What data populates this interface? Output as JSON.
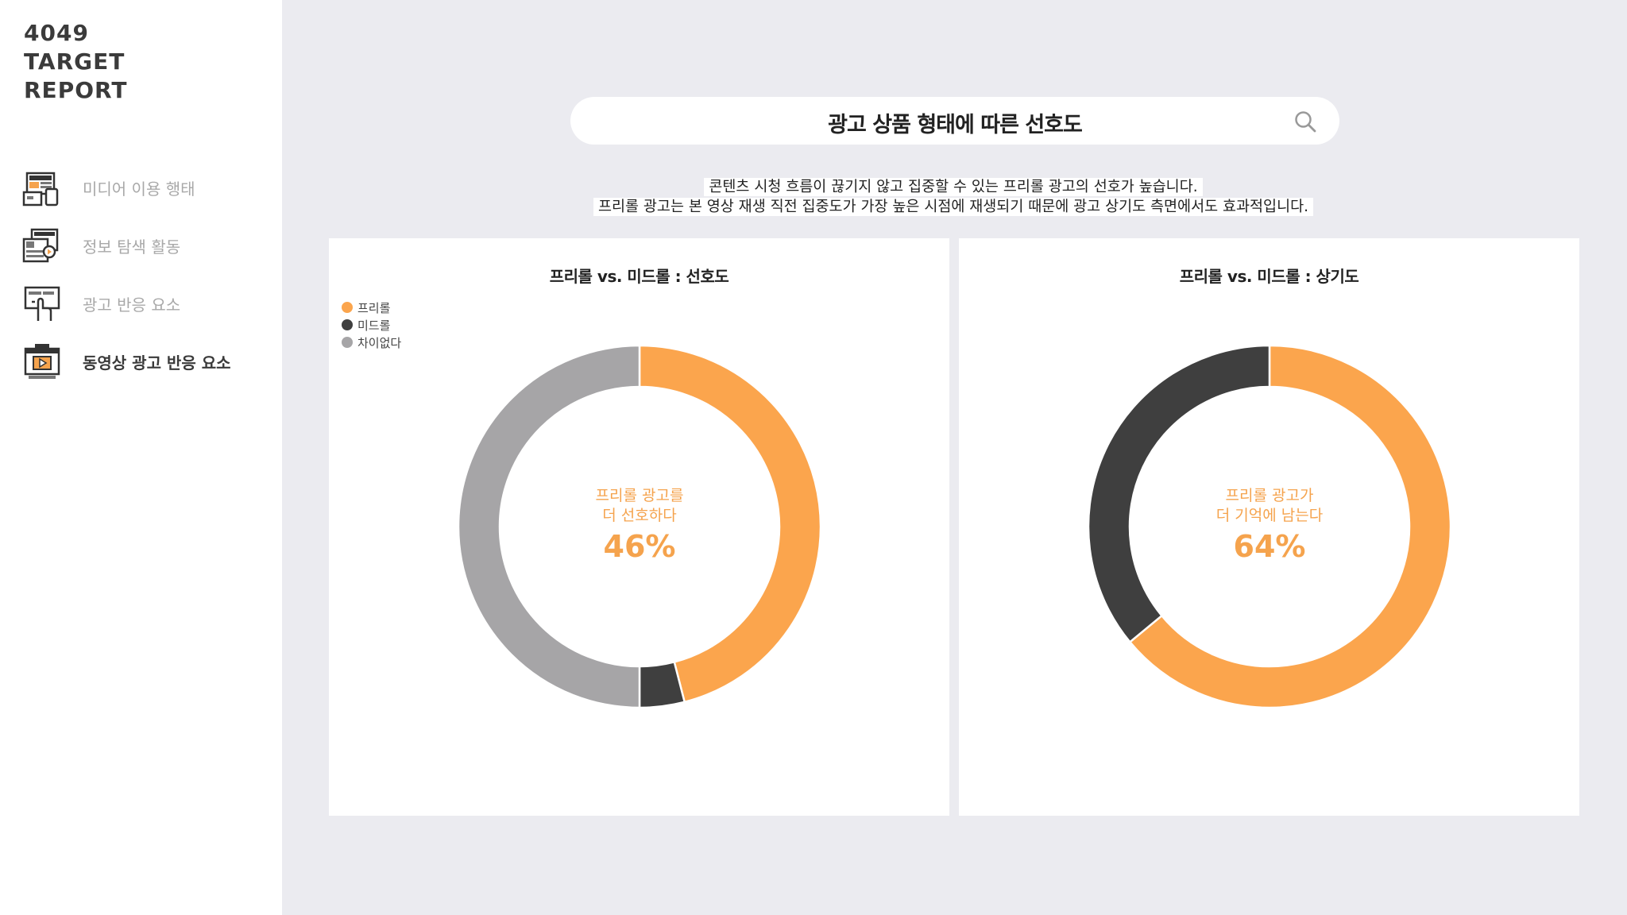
{
  "sidebar": {
    "brand": [
      "4049",
      "TARGET",
      "REPORT"
    ],
    "items": [
      {
        "label": "미디어 이용 행태",
        "icon": "devices-icon",
        "active": false
      },
      {
        "label": "정보 탐색 활동",
        "icon": "video-browse-icon",
        "active": false
      },
      {
        "label": "광고 반응 요소",
        "icon": "touch-screen-icon",
        "active": false
      },
      {
        "label": "동영상 광고 반응 요소",
        "icon": "video-ad-icon",
        "active": true
      }
    ]
  },
  "header": {
    "title": "광고 상품 형태에 따른 선호도",
    "search_icon": "search-icon"
  },
  "description": [
    "콘텐츠 시청 흐름이 끊기지 않고 집중할 수 있는 프리롤 광고의 선호가 높습니다.",
    "프리롤 광고는 본 영상 재생 직전 집중도가 가장 높은 시점에 재생되기 때문에 광고 상기도 측면에서도 효과적입니다."
  ],
  "colors": {
    "preroll": "#fba54d",
    "midroll": "#3f3f3f",
    "nodiff": "#a6a5a7",
    "accent_text": "#f5a34d"
  },
  "chart_data": [
    {
      "type": "pie",
      "title": "프리롤 vs. 미드롤 : 선호도",
      "legend": [
        "프리롤",
        "미드롤",
        "차이없다"
      ],
      "legend_position": "top-left",
      "slices": [
        {
          "name": "프리롤",
          "value": 46
        },
        {
          "name": "미드롤",
          "value": 4
        },
        {
          "name": "차이없다",
          "value": 50
        }
      ],
      "center_text": [
        "프리롤 광고를",
        "더 선호하다"
      ],
      "center_value": "46%"
    },
    {
      "type": "pie",
      "title": "프리롤 vs. 미드롤 : 상기도",
      "legend": [],
      "slices": [
        {
          "name": "프리롤",
          "value": 64
        },
        {
          "name": "미드롤",
          "value": 36
        }
      ],
      "center_text": [
        "프리롤 광고가",
        "더 기억에 남는다"
      ],
      "center_value": "64%"
    }
  ]
}
